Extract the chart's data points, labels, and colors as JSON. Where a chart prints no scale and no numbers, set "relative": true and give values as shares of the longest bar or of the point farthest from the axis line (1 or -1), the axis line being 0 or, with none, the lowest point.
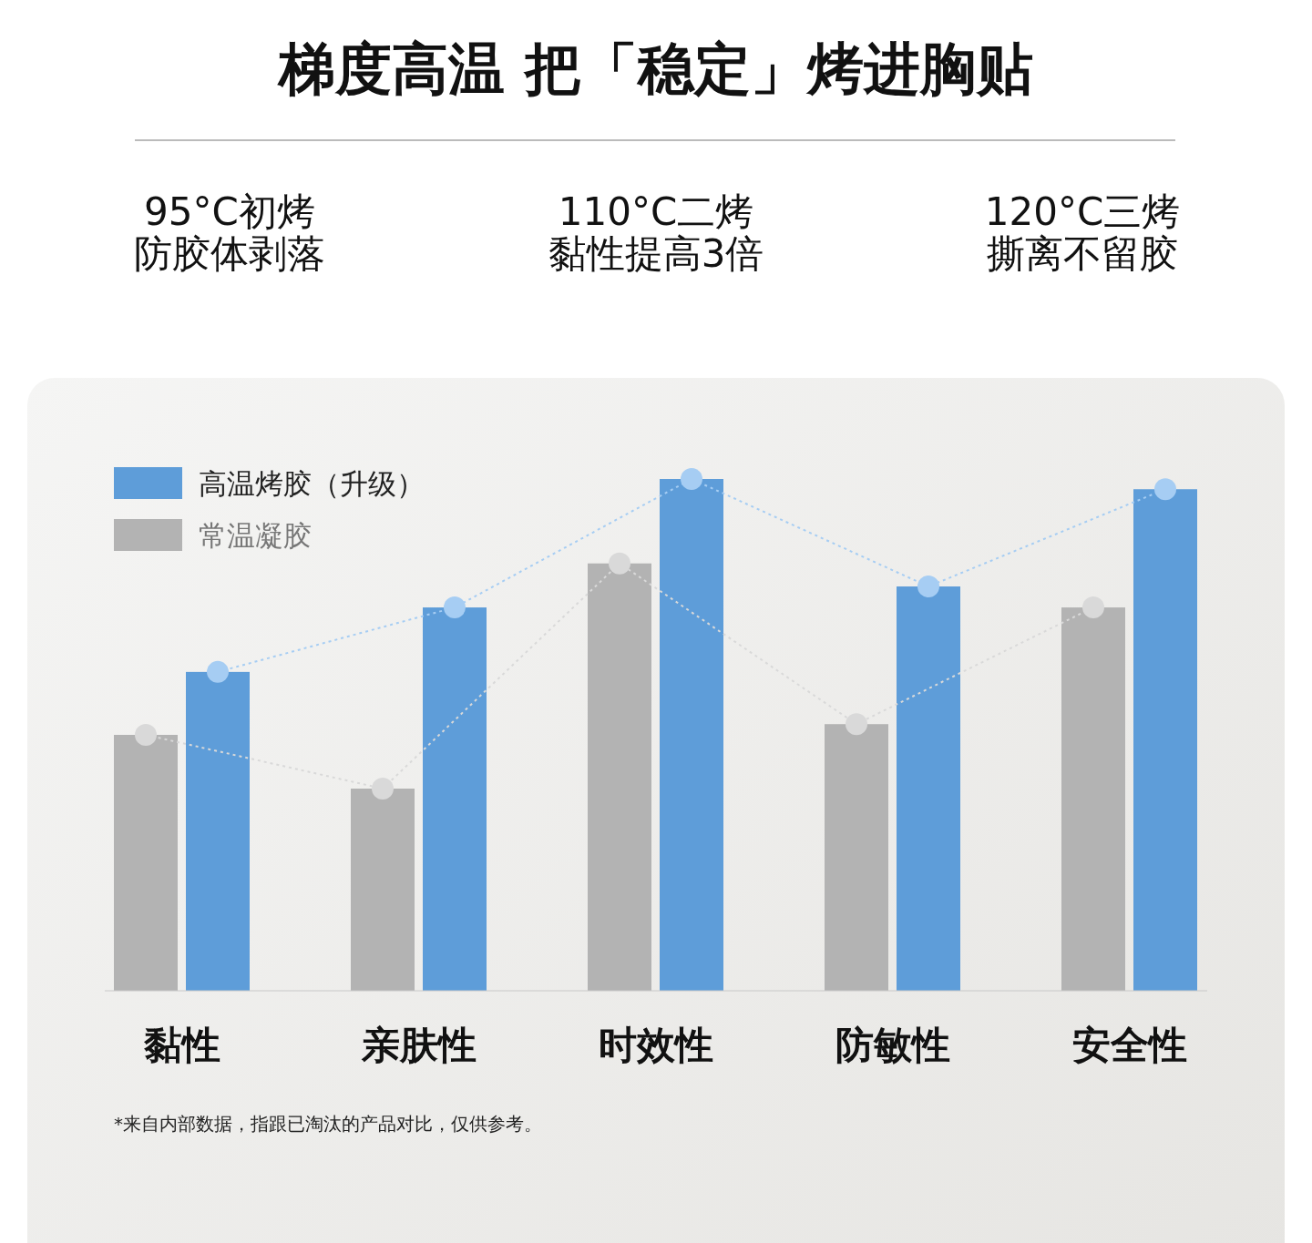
{
  "chart_data": {
    "type": "bar",
    "title": "梯度高温  把「稳定」烤进胸贴",
    "annotations": [
      "95°C初烤",
      "防胶体剥落",
      "110°C二烤",
      "黏性提高3倍",
      "120°C三烤",
      "撕离不留胶",
      "*来自内部数据，指跟已淘汰的产品对比，仅供参考。"
    ],
    "categories": [
      "黏性",
      "亲肤性",
      "时效性",
      "防敏性",
      "安全性"
    ],
    "relative": true,
    "legend": "top left",
    "series": [
      {
        "name": "常温凝胶",
        "color": "#b3b3b3",
        "values": [
          0.5,
          0.395,
          0.835,
          0.521,
          0.749
        ]
      },
      {
        "name": "高温烤胶（升级）",
        "color": "#5e9dd9",
        "values": [
          0.623,
          0.749,
          1.0,
          0.79,
          0.98
        ]
      },
      {
        "type": "line",
        "color": "#d9d9d9",
        "line_style": "dotted",
        "marker": "circle",
        "values": [
          0.5,
          0.395,
          0.835,
          0.521,
          0.749
        ]
      },
      {
        "type": "line",
        "color": "#a6cdf3",
        "line_style": "dotted",
        "marker": "circle",
        "values": [
          0.623,
          0.749,
          1.0,
          0.79,
          0.98
        ]
      }
    ]
  }
}
